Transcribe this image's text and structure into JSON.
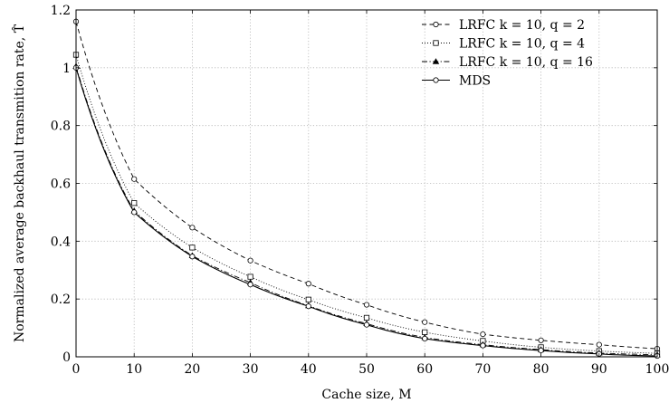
{
  "chart_data": {
    "type": "line",
    "xlabel": "Cache size, M",
    "ylabel": "Normalized average backhaul transmition rate, T̂",
    "xlim": [
      0,
      100
    ],
    "ylim": [
      0,
      1.2
    ],
    "xticks": [
      "0",
      "10",
      "20",
      "30",
      "40",
      "50",
      "60",
      "70",
      "80",
      "90",
      "100"
    ],
    "yticks": [
      "0",
      "0.2",
      "0.4",
      "0.6",
      "0.8",
      "1",
      "1.2"
    ],
    "grid": true,
    "legend_position": "top-right",
    "series": [
      {
        "name": "LRFC k = 10, q = 2",
        "line_style": "dashed",
        "marker": "circle",
        "x": [
          0,
          10,
          20,
          30,
          40,
          50,
          60,
          70,
          80,
          90,
          100
        ],
        "y": [
          1.16,
          0.615,
          0.447,
          0.333,
          0.253,
          0.18,
          0.12,
          0.078,
          0.057,
          0.042,
          0.028
        ]
      },
      {
        "name": "LRFC k = 10, q = 4",
        "line_style": "dotted",
        "marker": "square",
        "x": [
          0,
          10,
          20,
          30,
          40,
          50,
          60,
          70,
          80,
          90,
          100
        ],
        "y": [
          1.045,
          0.532,
          0.378,
          0.277,
          0.198,
          0.135,
          0.085,
          0.055,
          0.033,
          0.02,
          0.012
        ]
      },
      {
        "name": "LRFC k = 10, q = 16",
        "line_style": "dashdot",
        "marker": "triangle",
        "x": [
          0,
          10,
          20,
          30,
          40,
          50,
          60,
          70,
          80,
          90,
          100
        ],
        "y": [
          1.005,
          0.505,
          0.35,
          0.257,
          0.177,
          0.115,
          0.067,
          0.042,
          0.025,
          0.013,
          0.007
        ]
      },
      {
        "name": "MDS",
        "line_style": "solid",
        "marker": "circle",
        "x": [
          0,
          10,
          20,
          30,
          40,
          50,
          60,
          70,
          80,
          90,
          100
        ],
        "y": [
          1.0,
          0.5,
          0.347,
          0.25,
          0.175,
          0.111,
          0.063,
          0.039,
          0.022,
          0.01,
          0.003
        ]
      }
    ]
  }
}
